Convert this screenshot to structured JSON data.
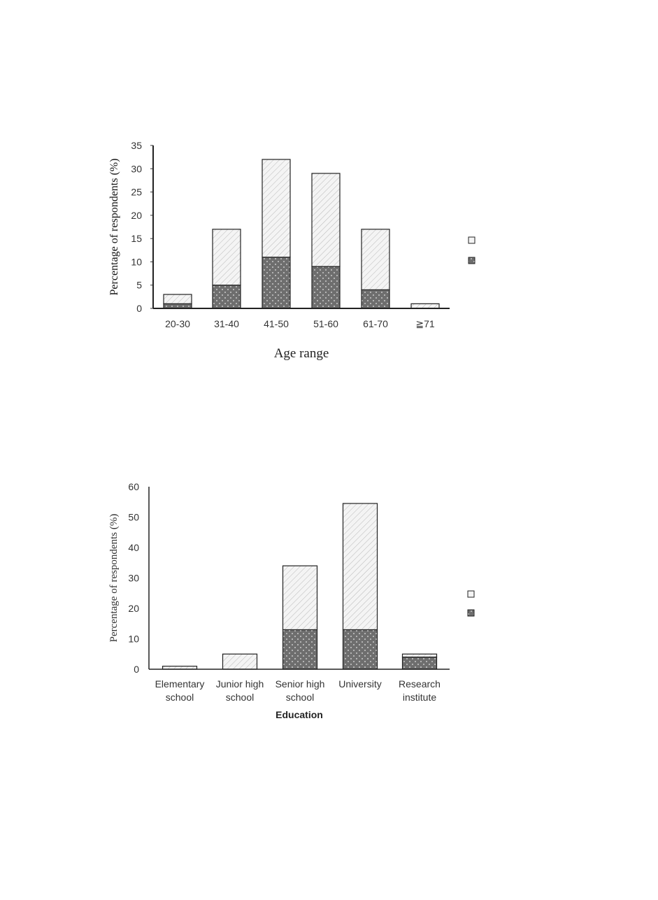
{
  "chart_data": [
    {
      "type": "bar",
      "stacked": true,
      "categories": [
        "20-30",
        "31-40",
        "41-50",
        "51-60",
        "61-70",
        "≧71"
      ],
      "series": [
        {
          "pattern": "dotted-dark",
          "color": "#6f6f6f",
          "values": [
            1,
            5,
            11,
            9,
            4,
            0
          ]
        },
        {
          "pattern": "hatched-light",
          "color": "#f2f2f2",
          "values": [
            2,
            12,
            21,
            20,
            13,
            1
          ]
        }
      ],
      "legend_position": "right",
      "xlabel": "Age range",
      "ylabel": "Percentage of respondents (%)",
      "ylim": [
        0,
        35
      ],
      "yticks": [
        0,
        5,
        10,
        15,
        20,
        25,
        30,
        35
      ],
      "grid": false
    },
    {
      "type": "bar",
      "stacked": true,
      "categories": [
        [
          "Elementary",
          "school"
        ],
        [
          "Junior high",
          "school"
        ],
        [
          "Senior high",
          "school"
        ],
        [
          "University"
        ],
        [
          "Research",
          "institute"
        ]
      ],
      "series": [
        {
          "pattern": "dotted-dark",
          "color": "#6f6f6f",
          "values": [
            0,
            0,
            13,
            13,
            4
          ]
        },
        {
          "pattern": "hatched-light",
          "color": "#f2f2f2",
          "values": [
            1,
            5,
            21,
            41.5,
            1
          ]
        }
      ],
      "legend_position": "right",
      "xlabel": "Education",
      "ylabel": "Percentage of respondents (%)",
      "ylim": [
        0,
        60
      ],
      "yticks": [
        0,
        10,
        20,
        30,
        40,
        50,
        60
      ],
      "grid": false
    }
  ]
}
